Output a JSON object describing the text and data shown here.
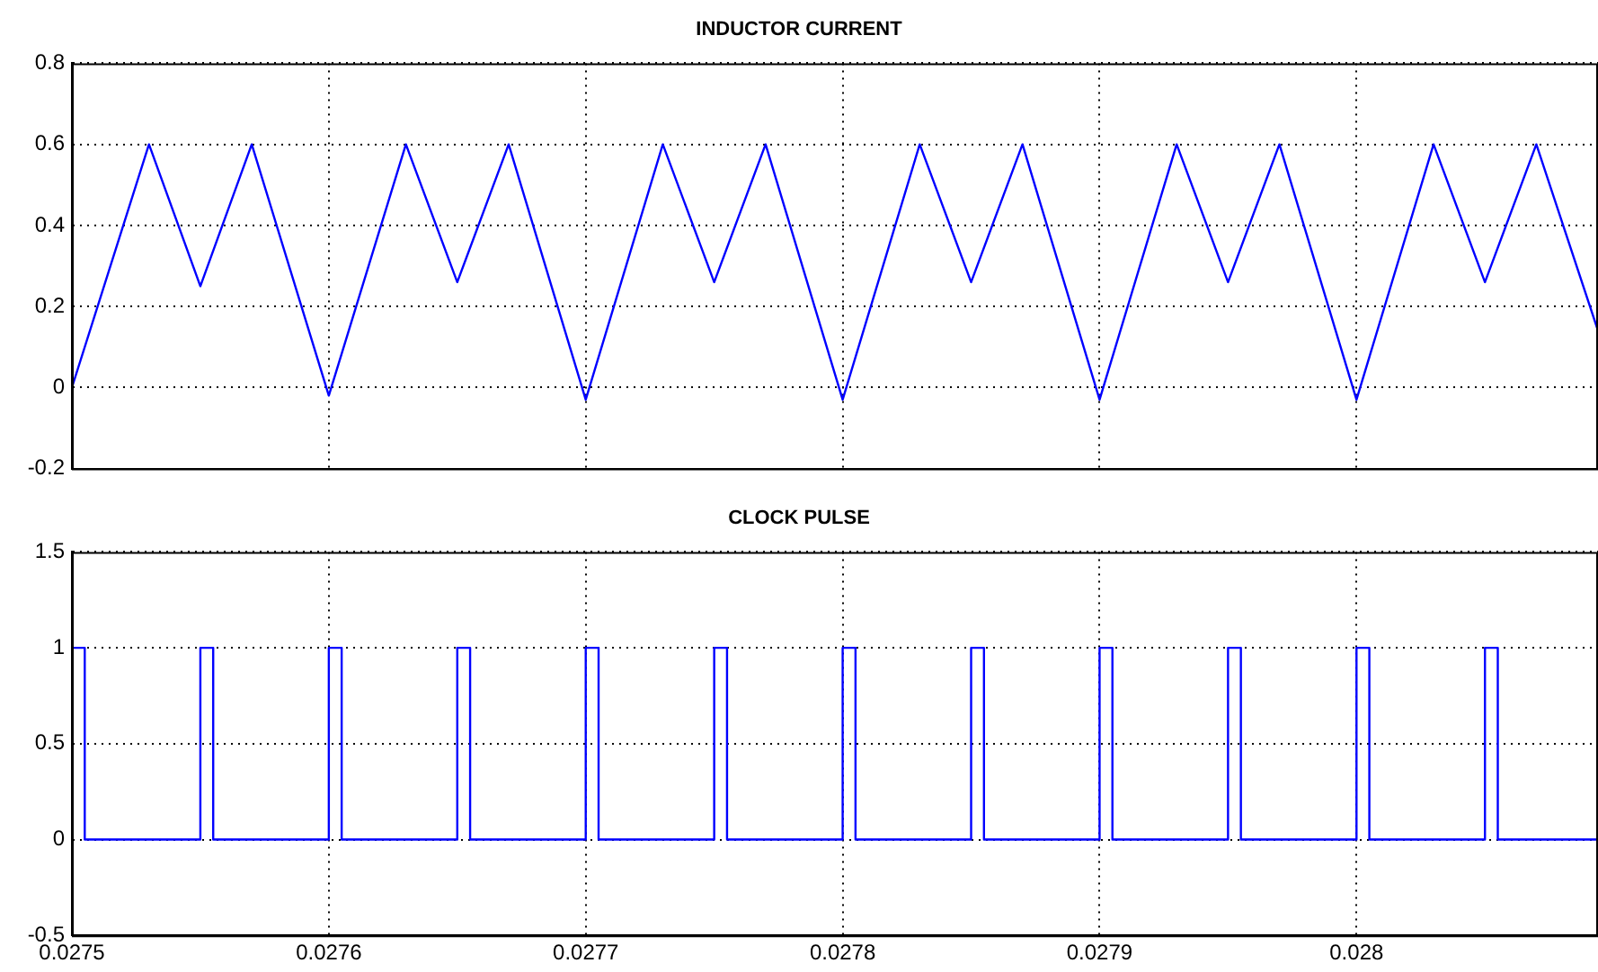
{
  "chart_data": [
    {
      "type": "line",
      "title": "INDUCTOR CURRENT",
      "x": [
        0.0275,
        0.02753,
        0.02755,
        0.02757,
        0.0276,
        0.02763,
        0.02765,
        0.02767,
        0.0277,
        0.02773,
        0.02775,
        0.02777,
        0.0278,
        0.02783,
        0.02785,
        0.02787,
        0.0279,
        0.02793,
        0.02795,
        0.02797,
        0.028,
        0.02803,
        0.02805,
        0.02807,
        0.028094
      ],
      "series": [
        {
          "color": "#0000ff",
          "values": [
            0,
            0.6,
            0.25,
            0.6,
            -0.02,
            0.6,
            0.26,
            0.6,
            -0.03,
            0.6,
            0.26,
            0.6,
            -0.03,
            0.6,
            0.26,
            0.6,
            -0.03,
            0.6,
            0.26,
            0.6,
            -0.03,
            0.6,
            0.26,
            0.6,
            0.14
          ]
        }
      ],
      "xlim": [
        0.0275,
        0.028094
      ],
      "xticks": [
        0.0275,
        0.0276,
        0.0277,
        0.0278,
        0.0279,
        0.028
      ],
      "ylim": [
        -0.2,
        0.8
      ],
      "yticks": [
        -0.2,
        0,
        0.2,
        0.4,
        0.6,
        0.8
      ],
      "grid": true,
      "tick_labels": "y"
    },
    {
      "type": "step",
      "title": "CLOCK PULSE",
      "x": [
        0.0275,
        0.027505,
        0.02755,
        0.027555,
        0.0276,
        0.027605,
        0.02765,
        0.027655,
        0.0277,
        0.027705,
        0.02775,
        0.027755,
        0.0278,
        0.027805,
        0.02785,
        0.027855,
        0.0279,
        0.027905,
        0.02795,
        0.027955,
        0.028,
        0.028005,
        0.02805,
        0.028055,
        0.028094
      ],
      "series": [
        {
          "color": "#0000ff",
          "values": [
            1,
            0,
            1,
            0,
            1,
            0,
            1,
            0,
            1,
            0,
            1,
            0,
            1,
            0,
            1,
            0,
            1,
            0,
            1,
            0,
            1,
            0,
            1,
            0,
            0
          ]
        }
      ],
      "xlim": [
        0.0275,
        0.028094
      ],
      "xticks": [
        0.0275,
        0.0276,
        0.0277,
        0.0278,
        0.0279,
        0.028
      ],
      "ylim": [
        -0.5,
        1.5
      ],
      "yticks": [
        -0.5,
        0,
        0.5,
        1,
        1.5
      ],
      "grid": true
    }
  ]
}
